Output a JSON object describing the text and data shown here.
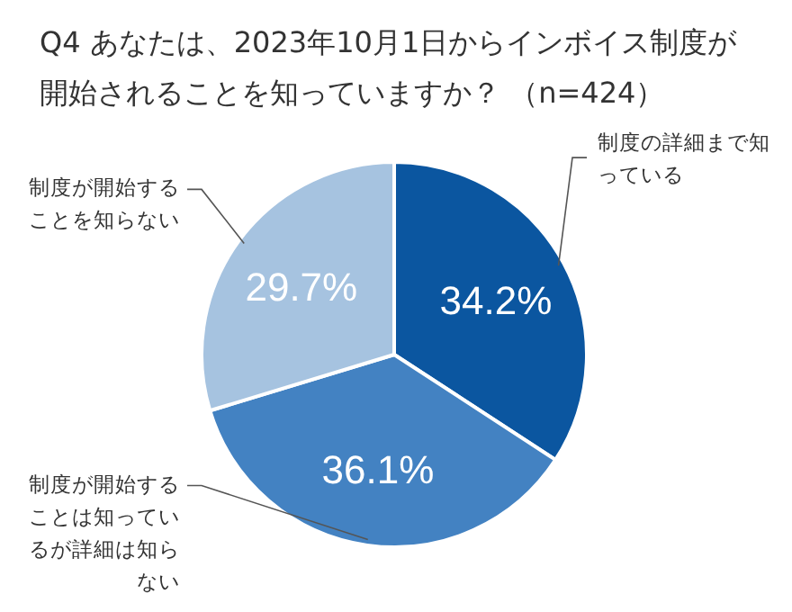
{
  "chart_data": {
    "type": "pie",
    "title": "Q4 あなたは、2023年10月1日からインボイス制度が開始されることを知っていますか？ （n=424）",
    "categories": [
      "制度の詳細まで知っている",
      "制度が開始することは知っているが詳細は知らない",
      "制度が開始することを知らない"
    ],
    "values": [
      34.2,
      36.1,
      29.7
    ],
    "colors": [
      "#0b56a0",
      "#4382c2",
      "#a6c3e0"
    ],
    "value_labels": [
      "34.2%",
      "36.1%",
      "29.7%"
    ]
  }
}
